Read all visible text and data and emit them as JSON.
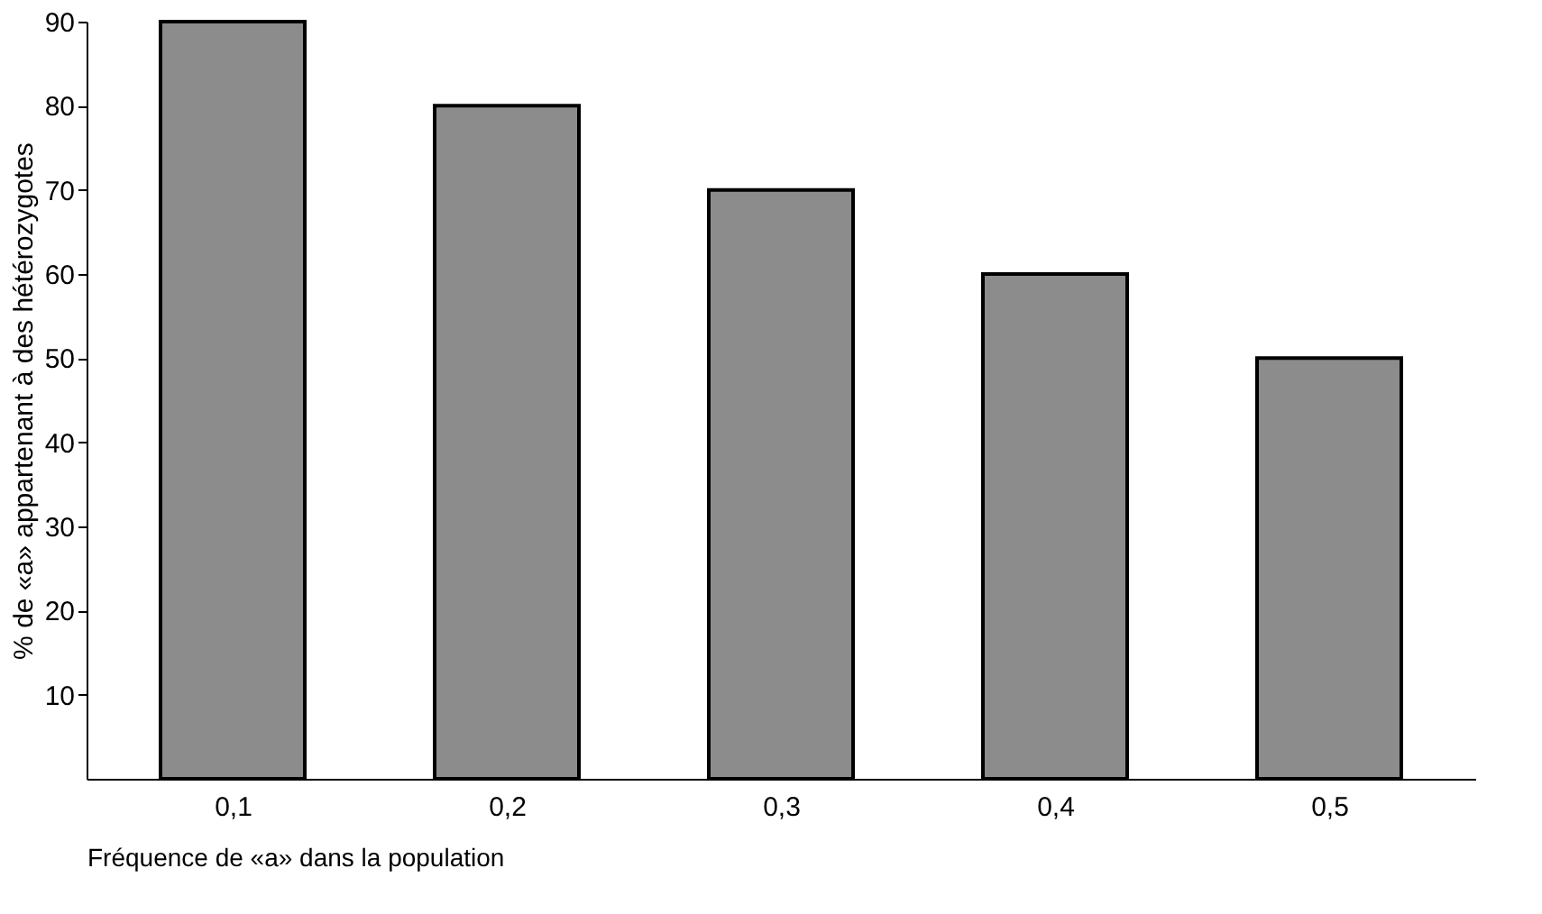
{
  "chart_data": {
    "type": "bar",
    "xlabel": "Fréquence de «a» dans la population",
    "ylabel": "% de «a» appartenant à des hétérozygotes",
    "categories": [
      "0,1",
      "0,2",
      "0,3",
      "0,4",
      "0,5"
    ],
    "values": [
      90,
      80,
      70,
      60,
      50
    ],
    "color": "#8c8c8c",
    "ylim": [
      0,
      90
    ],
    "yticks": [
      10,
      20,
      30,
      40,
      50,
      60,
      70,
      80,
      90
    ],
    "grid": false
  }
}
